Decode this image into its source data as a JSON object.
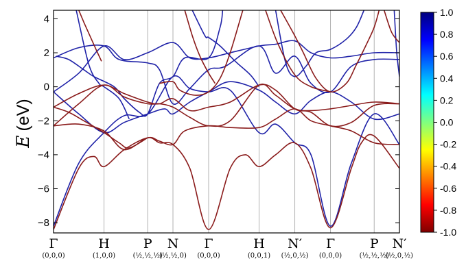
{
  "chart_data": {
    "type": "line",
    "title": "",
    "ylabel_symbol": "E",
    "ylabel_unit": "(eV)",
    "ylim": [
      -8.6,
      4.5
    ],
    "yticks": [
      4,
      2,
      0,
      -2,
      -4,
      -6,
      -8
    ],
    "ytick_labels": [
      "4",
      "2",
      "0",
      "−2",
      "−4",
      "−6",
      "−8"
    ],
    "kpoints": [
      {
        "symbol": "Γ",
        "coord": "(0,0,0)",
        "x": 0
      },
      {
        "symbol": "H",
        "coord": "(1,0,0)",
        "x": 1
      },
      {
        "symbol": "P",
        "coord": "(½,½,½)",
        "x": 1.866
      },
      {
        "symbol": "N",
        "coord": "(½,½,0)",
        "x": 2.366
      },
      {
        "symbol": "Γ",
        "coord": "(0,0,0)",
        "x": 3.073
      },
      {
        "symbol": "H",
        "coord": "(0,0,1)",
        "x": 4.073
      },
      {
        "symbol": "N′",
        "coord": "(½,0,½)",
        "x": 4.78
      },
      {
        "symbol": "Γ",
        "coord": "(0,0,0)",
        "x": 5.487
      },
      {
        "symbol": "P",
        "coord": "(½,½,½)",
        "x": 6.353
      },
      {
        "symbol": "N′",
        "coord": "(½,0,½)",
        "x": 6.853
      }
    ],
    "colorbar": {
      "min": -1.0,
      "max": 1.0,
      "ticks": [
        1.0,
        0.8,
        0.6,
        0.4,
        0.2,
        0.0,
        -0.2,
        -0.4,
        -0.6,
        -0.8,
        -1.0
      ],
      "tick_labels": [
        "1.0",
        "0.8",
        "0.6",
        "0.4",
        "0.2",
        "0.0",
        "-0.2",
        "-0.4",
        "-0.6",
        "-0.8",
        "-1.0"
      ],
      "colors": [
        "#7f0000",
        "#ff0000",
        "#ff8000",
        "#ffff00",
        "#80ff80",
        "#00ffff",
        "#0080ff",
        "#0000ff",
        "#00007f"
      ]
    },
    "series": [
      {
        "color": "#1f22a8",
        "points": [
          [
            0,
            -8.2
          ],
          [
            0.5,
            -4.5
          ],
          [
            1,
            -2.7
          ],
          [
            1.4,
            -1.7
          ],
          [
            1.866,
            -1.6
          ],
          [
            2.366,
            0.6
          ],
          [
            2.7,
            -0.1
          ],
          [
            3.073,
            -0.3
          ],
          [
            3.5,
            -0.2
          ],
          [
            4.073,
            -2.7
          ],
          [
            4.4,
            -2.2
          ],
          [
            4.78,
            -3.3
          ],
          [
            5.1,
            -4
          ],
          [
            5.487,
            -8.2
          ],
          [
            5.9,
            -4.5
          ],
          [
            6.353,
            -1.6
          ],
          [
            6.853,
            -3.4
          ]
        ]
      },
      {
        "color": "#1f22a8",
        "points": [
          [
            0,
            -0.3
          ],
          [
            0.5,
            0.8
          ],
          [
            1,
            2.4
          ],
          [
            1.4,
            1.6
          ],
          [
            1.866,
            2.0
          ],
          [
            2.366,
            2.6
          ],
          [
            2.7,
            1.7
          ],
          [
            3.073,
            1.7
          ],
          [
            3.5,
            2.0
          ],
          [
            4.073,
            2.4
          ],
          [
            4.4,
            2.5
          ],
          [
            4.78,
            2.7
          ],
          [
            5.1,
            2.0
          ],
          [
            5.487,
            1.7
          ],
          [
            5.9,
            1.8
          ],
          [
            6.353,
            2.0
          ],
          [
            6.853,
            2.0
          ]
        ]
      },
      {
        "color": "#1f22a8",
        "points": [
          [
            0,
            1.7
          ],
          [
            0.5,
            2.3
          ],
          [
            1,
            2.4
          ],
          [
            1.3,
            1.6
          ],
          [
            1.866,
            1.4
          ],
          [
            2.1,
            1.0
          ],
          [
            2.366,
            -1.0
          ],
          [
            2.7,
            -0.1
          ],
          [
            3.073,
            1.0
          ],
          [
            3.4,
            1.2
          ],
          [
            4.073,
            2.4
          ],
          [
            4.4,
            0.8
          ],
          [
            4.78,
            1.8
          ],
          [
            5.1,
            0.2
          ],
          [
            5.487,
            -0.3
          ],
          [
            5.9,
            1.2
          ],
          [
            6.353,
            1.6
          ],
          [
            6.853,
            1.6
          ]
        ]
      },
      {
        "color": "#1f22a8",
        "points": [
          [
            0,
            -0.3
          ],
          [
            0.5,
            -1.6
          ],
          [
            1,
            -2.7
          ],
          [
            1.4,
            -2.1
          ],
          [
            1.866,
            -1.6
          ],
          [
            2.2,
            -1.3
          ],
          [
            2.366,
            -1.6
          ],
          [
            2.7,
            -0.9
          ],
          [
            3.073,
            -0.3
          ],
          [
            3.5,
            0.3
          ],
          [
            4.073,
            -0.2
          ],
          [
            4.4,
            -0.9
          ],
          [
            4.78,
            -1.6
          ],
          [
            5.1,
            -0.8
          ],
          [
            5.487,
            -0.3
          ],
          [
            5.9,
            -0.9
          ],
          [
            6.353,
            -1.9
          ],
          [
            6.853,
            -1.6
          ]
        ]
      },
      {
        "color": "#1f22a8",
        "points": [
          [
            0.05,
            1.8
          ],
          [
            0.3,
            1.6
          ],
          [
            0.6,
            1.0
          ],
          [
            0.8,
            0.6
          ],
          [
            1.2,
            0.0
          ],
          [
            1.4,
            -0.7
          ],
          [
            1.7,
            -1.5
          ],
          [
            1.866,
            -1.6
          ],
          [
            2.1,
            0.2
          ],
          [
            2.366,
            0.6
          ],
          [
            2.6,
            1.7
          ],
          [
            3.073,
            1.7
          ],
          [
            3.3,
            3.5
          ],
          [
            3.35,
            4.5
          ]
        ]
      },
      {
        "color": "#1f22a8",
        "points": [
          [
            0.45,
            4.5
          ],
          [
            0.7,
            1.3
          ],
          [
            0.9,
            0.2
          ],
          [
            1,
            0.0
          ],
          [
            1.3,
            -0.7
          ],
          [
            1.5,
            -1.9
          ]
        ]
      },
      {
        "color": "#1f22a8",
        "points": [
          [
            2.75,
            4.5
          ],
          [
            3.0,
            3.0
          ],
          [
            3.073,
            2.9
          ],
          [
            3.3,
            2.4
          ],
          [
            3.6,
            1.5
          ],
          [
            3.9,
            0.7
          ],
          [
            4.073,
            0.0
          ]
        ]
      },
      {
        "color": "#1f22a8",
        "points": [
          [
            4.4,
            4.5
          ],
          [
            4.6,
            1.4
          ],
          [
            4.78,
            0.6
          ],
          [
            5.0,
            1.2
          ],
          [
            5.2,
            2.0
          ],
          [
            5.487,
            2.2
          ],
          [
            5.8,
            2.8
          ],
          [
            6.0,
            3.5
          ],
          [
            6.15,
            4.5
          ]
        ]
      },
      {
        "color": "#1f22a8",
        "points": [
          [
            6.75,
            4.5
          ],
          [
            6.8,
            2.0
          ],
          [
            6.853,
            0.6
          ]
        ]
      },
      {
        "color": "#8a1b1b",
        "points": [
          [
            0,
            -8.4
          ],
          [
            0.5,
            -4.8
          ],
          [
            0.8,
            -4.1
          ],
          [
            1,
            -4.7
          ],
          [
            1.4,
            -3.7
          ],
          [
            1.866,
            -3.0
          ],
          [
            2.1,
            -3.3
          ],
          [
            2.366,
            -3.4
          ],
          [
            2.7,
            -4.8
          ],
          [
            3.073,
            -8.4
          ],
          [
            3.5,
            -4.8
          ],
          [
            3.8,
            -4.0
          ],
          [
            4.073,
            -4.7
          ],
          [
            4.4,
            -4.0
          ],
          [
            4.78,
            -3.3
          ],
          [
            5.1,
            -4.8
          ],
          [
            5.487,
            -8.3
          ],
          [
            5.9,
            -4.8
          ],
          [
            6.1,
            -3.3
          ],
          [
            6.353,
            -2.9
          ],
          [
            6.853,
            -4.8
          ]
        ]
      },
      {
        "color": "#8a1b1b",
        "points": [
          [
            0,
            -2.3
          ],
          [
            0.5,
            -1.0
          ],
          [
            1,
            0.1
          ],
          [
            1.4,
            -0.6
          ],
          [
            1.866,
            -1.0
          ],
          [
            2.1,
            -1.0
          ],
          [
            2.366,
            -1.2
          ],
          [
            2.7,
            -1.8
          ],
          [
            3.073,
            -2.3
          ],
          [
            3.5,
            -2.0
          ],
          [
            4.073,
            0.1
          ],
          [
            4.4,
            -0.5
          ],
          [
            4.78,
            -1.3
          ],
          [
            5.1,
            -1.4
          ],
          [
            5.487,
            -1.3
          ],
          [
            5.9,
            -1.1
          ],
          [
            6.353,
            -0.9
          ],
          [
            6.853,
            -1.0
          ]
        ]
      },
      {
        "color": "#8a1b1b",
        "points": [
          [
            0,
            -1.2
          ],
          [
            0.5,
            -0.4
          ],
          [
            1,
            0.1
          ],
          [
            1.4,
            -0.4
          ],
          [
            1.866,
            -0.9
          ],
          [
            2.1,
            -1.0
          ],
          [
            2.366,
            -0.7
          ],
          [
            2.7,
            -1.4
          ],
          [
            3.073,
            -1.2
          ],
          [
            3.5,
            -0.9
          ],
          [
            4.073,
            0.1
          ],
          [
            4.4,
            -0.2
          ],
          [
            4.78,
            -1.3
          ],
          [
            5.1,
            -1.5
          ],
          [
            5.487,
            -2.3
          ],
          [
            5.9,
            -2.1
          ],
          [
            6.353,
            -1.1
          ],
          [
            6.853,
            -1.0
          ]
        ]
      },
      {
        "color": "#8a1b1b",
        "points": [
          [
            0,
            -2.3
          ],
          [
            0.5,
            -2.2
          ],
          [
            1,
            -2.6
          ],
          [
            1.4,
            -3.7
          ],
          [
            1.866,
            -3.0
          ],
          [
            2.1,
            -3.2
          ],
          [
            2.366,
            -3.4
          ],
          [
            2.6,
            -2.6
          ],
          [
            3.073,
            -2.3
          ],
          [
            3.5,
            -2.4
          ],
          [
            4.073,
            -2.4
          ],
          [
            4.4,
            -1.9
          ],
          [
            4.78,
            -1.3
          ],
          [
            5.1,
            -2.0
          ],
          [
            5.487,
            -2.3
          ],
          [
            5.9,
            -2.6
          ],
          [
            6.353,
            -3.3
          ],
          [
            6.853,
            -3.4
          ]
        ]
      },
      {
        "color": "#8a1b1b",
        "points": [
          [
            0,
            -1.2
          ],
          [
            0.3,
            -1.5
          ],
          [
            0.6,
            -2.0
          ],
          [
            1,
            -2.7
          ],
          [
            1.3,
            -3.3
          ],
          [
            1.5,
            -3.6
          ],
          [
            1.866,
            -3.0
          ]
        ]
      },
      {
        "color": "#8a1b1b",
        "points": [
          [
            0.5,
            4.5
          ],
          [
            0.6,
            3.8
          ],
          [
            0.75,
            2.8
          ],
          [
            0.95,
            1.5
          ]
        ]
      },
      {
        "color": "#8a1b1b",
        "points": [
          [
            2.1,
            0.2
          ],
          [
            2.366,
            0.3
          ],
          [
            2.5,
            -0.2
          ],
          [
            2.8,
            -0.5
          ],
          [
            3.073,
            -0.3
          ],
          [
            3.3,
            0.5
          ],
          [
            3.5,
            2.0
          ],
          [
            3.75,
            4.5
          ]
        ]
      },
      {
        "color": "#8a1b1b",
        "points": [
          [
            2.6,
            4.5
          ],
          [
            2.75,
            3.0
          ],
          [
            2.9,
            1.8
          ],
          [
            3.073,
            0.8
          ],
          [
            3.2,
            0.2
          ]
        ]
      },
      {
        "color": "#8a1b1b",
        "points": [
          [
            4.2,
            4.5
          ],
          [
            4.45,
            2.5
          ],
          [
            4.78,
            0.7
          ],
          [
            5.1,
            0.0
          ],
          [
            5.487,
            -0.3
          ]
        ]
      },
      {
        "color": "#8a1b1b",
        "points": [
          [
            4.5,
            4.5
          ],
          [
            4.78,
            3.0
          ],
          [
            4.95,
            2.0
          ],
          [
            5.2,
            0.5
          ],
          [
            5.487,
            -0.3
          ],
          [
            5.8,
            0.2
          ],
          [
            6.0,
            1.3
          ],
          [
            6.2,
            2.5
          ],
          [
            6.353,
            3.5
          ],
          [
            6.45,
            4.5
          ]
        ]
      },
      {
        "color": "#8a1b1b",
        "points": [
          [
            6.55,
            4.5
          ],
          [
            6.7,
            3.2
          ],
          [
            6.853,
            2.6
          ]
        ]
      }
    ]
  }
}
